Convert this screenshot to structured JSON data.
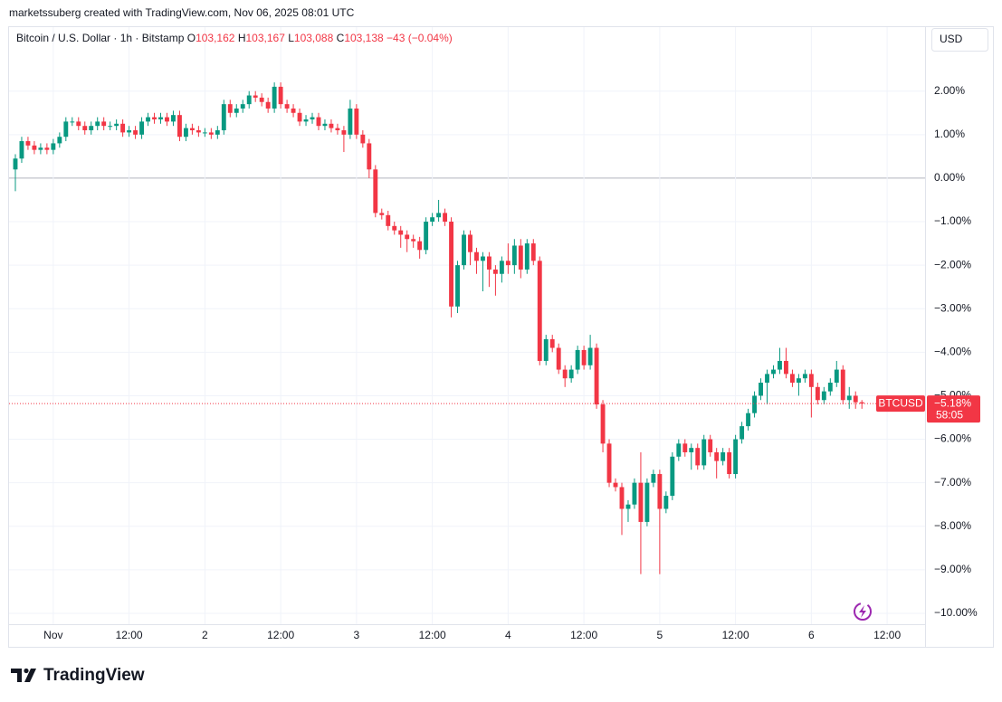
{
  "header": {
    "credit": "marketssuberg created with TradingView.com, Nov 06, 2025 08:01 UTC",
    "symbol": "Bitcoin / U.S. Dollar · 1h · Bitstamp",
    "ohlc": [
      {
        "key": "O",
        "value": "103,162"
      },
      {
        "key": "H",
        "value": "103,167"
      },
      {
        "key": "L",
        "value": "103,088"
      },
      {
        "key": "C",
        "value": "103,138"
      }
    ],
    "change": "−43 (−0.04%)",
    "currency": "USD"
  },
  "footer": {
    "brand": "TradingView"
  },
  "chart_data": {
    "type": "candlestick",
    "xlim": [
      -1,
      144
    ],
    "xticks": [
      {
        "value": 6,
        "label": "Nov"
      },
      {
        "value": 18,
        "label": "12:00"
      },
      {
        "value": 30,
        "label": "2"
      },
      {
        "value": 42,
        "label": "12:00"
      },
      {
        "value": 54,
        "label": "3"
      },
      {
        "value": 66,
        "label": "12:00"
      },
      {
        "value": 78,
        "label": "4"
      },
      {
        "value": 90,
        "label": "12:00"
      },
      {
        "value": 102,
        "label": "5"
      },
      {
        "value": 114,
        "label": "12:00"
      },
      {
        "value": 126,
        "label": "6"
      },
      {
        "value": 138,
        "label": "12:00"
      }
    ],
    "ylim": [
      -10.77,
      3.47
    ],
    "yticks": [
      {
        "value": 2,
        "label": "2.00%"
      },
      {
        "value": 1,
        "label": "1.00%"
      },
      {
        "value": 0,
        "label": "0.00%"
      },
      {
        "value": -1,
        "label": "−1.00%"
      },
      {
        "value": -2,
        "label": "−2.00%"
      },
      {
        "value": -3,
        "label": "−3.00%"
      },
      {
        "value": -4,
        "label": "−4.00%"
      },
      {
        "value": -5,
        "label": "−5.00%"
      },
      {
        "value": -6,
        "label": "−6.00%"
      },
      {
        "value": -7,
        "label": "−7.00%"
      },
      {
        "value": -8,
        "label": "−8.00%"
      },
      {
        "value": -9,
        "label": "−9.00%"
      },
      {
        "value": -10,
        "label": "−10.00%"
      }
    ],
    "grid": true,
    "series": [
      {
        "name": "BTCUSD",
        "up_color": "#089981",
        "down_color": "#f23645",
        "open": [
          0.2,
          0.45,
          0.85,
          0.75,
          0.65,
          0.7,
          0.65,
          0.8,
          0.95,
          1.3,
          1.3,
          1.2,
          1.1,
          1.2,
          1.3,
          1.2,
          1.2,
          1.25,
          1.05,
          1.1,
          1.0,
          1.3,
          1.4,
          1.35,
          1.4,
          1.3,
          1.45,
          0.95,
          1.15,
          1.1,
          1.05,
          1.05,
          1.0,
          1.1,
          1.7,
          1.5,
          1.6,
          1.7,
          1.9,
          1.85,
          1.75,
          1.6,
          2.1,
          1.7,
          1.6,
          1.5,
          1.3,
          1.35,
          1.4,
          1.2,
          1.25,
          1.15,
          1.1,
          1.0,
          1.6,
          1.0,
          0.8,
          0.2,
          -0.8,
          -0.85,
          -1.1,
          -1.2,
          -1.3,
          -1.4,
          -1.45,
          -1.65,
          -1.0,
          -0.9,
          -0.8,
          -1.0,
          -2.95,
          -2.0,
          -1.3,
          -1.7,
          -1.9,
          -1.8,
          -2.1,
          -2.2,
          -1.9,
          -2.0,
          -1.55,
          -2.1,
          -1.5,
          -1.9,
          -4.2,
          -3.7,
          -3.9,
          -4.4,
          -4.6,
          -4.4,
          -3.95,
          -4.3,
          -3.9,
          -5.2,
          -6.1,
          -7.0,
          -7.1,
          -7.6,
          -7.5,
          -7.0,
          -7.9,
          -7.0,
          -6.8,
          -7.6,
          -7.3,
          -6.4,
          -6.1,
          -6.3,
          -6.2,
          -6.6,
          -6.0,
          -6.3,
          -6.5,
          -6.3,
          -6.8,
          -6.0,
          -5.7,
          -5.4,
          -5.0,
          -4.7,
          -4.5,
          -4.4,
          -4.2,
          -4.5,
          -4.7,
          -4.6,
          -4.5,
          -4.8,
          -5.1,
          -4.9,
          -4.7,
          -4.4,
          -5.1,
          -5.0,
          -5.15
        ],
        "high": [
          0.55,
          0.95,
          0.95,
          0.85,
          0.8,
          0.8,
          0.9,
          1.05,
          1.4,
          1.4,
          1.4,
          1.3,
          1.3,
          1.4,
          1.4,
          1.3,
          1.35,
          1.35,
          1.2,
          1.2,
          1.4,
          1.5,
          1.5,
          1.5,
          1.5,
          1.55,
          1.55,
          1.25,
          1.25,
          1.2,
          1.15,
          1.15,
          1.2,
          1.8,
          1.8,
          1.7,
          1.8,
          2.0,
          2.0,
          1.95,
          1.85,
          2.2,
          2.2,
          1.8,
          1.7,
          1.6,
          1.45,
          1.5,
          1.5,
          1.35,
          1.35,
          1.25,
          1.2,
          1.8,
          1.7,
          1.1,
          0.9,
          0.3,
          -0.7,
          -0.75,
          -1.0,
          -1.1,
          -1.2,
          -1.3,
          -1.35,
          -0.9,
          -0.8,
          -0.5,
          -0.7,
          -0.9,
          -1.9,
          -1.2,
          -1.2,
          -1.6,
          -1.7,
          -1.7,
          -2.0,
          -1.8,
          -1.5,
          -1.4,
          -1.4,
          -1.4,
          -1.4,
          -1.8,
          -3.6,
          -3.6,
          -3.8,
          -4.3,
          -4.3,
          -3.85,
          -3.85,
          -3.6,
          -3.8,
          -5.1,
          -6.0,
          -6.9,
          -7.0,
          -7.4,
          -6.9,
          -6.3,
          -6.9,
          -6.7,
          -6.7,
          -7.2,
          -6.3,
          -6.0,
          -6.0,
          -6.1,
          -6.1,
          -5.9,
          -5.9,
          -6.2,
          -6.2,
          -6.2,
          -5.9,
          -5.6,
          -5.3,
          -4.9,
          -4.6,
          -4.4,
          -4.3,
          -3.9,
          -3.9,
          -4.4,
          -4.5,
          -4.4,
          -4.4,
          -4.7,
          -4.8,
          -4.6,
          -4.2,
          -4.3,
          -4.8,
          -4.9,
          -5.1
        ],
        "low": [
          -0.3,
          0.35,
          0.65,
          0.55,
          0.55,
          0.55,
          0.55,
          0.7,
          0.85,
          1.2,
          1.1,
          1.0,
          1.0,
          1.1,
          1.1,
          1.1,
          1.1,
          0.95,
          0.95,
          0.9,
          0.9,
          1.2,
          1.25,
          1.25,
          1.2,
          1.2,
          0.85,
          0.85,
          1.0,
          0.95,
          0.95,
          0.9,
          0.9,
          1.0,
          1.4,
          1.4,
          1.5,
          1.6,
          1.75,
          1.65,
          1.5,
          1.5,
          1.6,
          1.5,
          1.4,
          1.2,
          1.2,
          1.25,
          1.1,
          1.1,
          1.05,
          1.0,
          0.6,
          0.9,
          0.9,
          0.7,
          0.0,
          -0.9,
          -0.95,
          -1.2,
          -1.3,
          -1.6,
          -1.7,
          -1.6,
          -1.85,
          -1.75,
          -1.1,
          -1.0,
          -1.1,
          -3.2,
          -3.1,
          -2.1,
          -2.0,
          -2.2,
          -2.6,
          -2.5,
          -2.7,
          -2.4,
          -2.2,
          -2.2,
          -2.3,
          -2.2,
          -2.0,
          -4.3,
          -4.3,
          -4.0,
          -4.5,
          -4.8,
          -4.7,
          -4.5,
          -4.4,
          -4.4,
          -5.3,
          -6.3,
          -7.1,
          -7.2,
          -8.2,
          -7.9,
          -7.6,
          -9.1,
          -8.0,
          -7.1,
          -9.1,
          -7.7,
          -7.4,
          -6.5,
          -6.4,
          -6.7,
          -6.7,
          -6.7,
          -6.4,
          -6.9,
          -6.6,
          -6.9,
          -6.9,
          -6.1,
          -5.8,
          -5.5,
          -5.1,
          -5.2,
          -4.6,
          -4.5,
          -4.6,
          -4.8,
          -5.0,
          -4.7,
          -5.5,
          -5.2,
          -5.2,
          -5.0,
          -4.8,
          -5.2,
          -5.3,
          -5.3,
          -5.3
        ],
        "close": [
          0.45,
          0.85,
          0.75,
          0.65,
          0.7,
          0.65,
          0.8,
          0.95,
          1.3,
          1.3,
          1.2,
          1.1,
          1.2,
          1.3,
          1.2,
          1.2,
          1.25,
          1.05,
          1.1,
          1.0,
          1.3,
          1.4,
          1.35,
          1.4,
          1.3,
          1.45,
          0.95,
          1.15,
          1.1,
          1.05,
          1.05,
          1.0,
          1.1,
          1.7,
          1.5,
          1.6,
          1.7,
          1.9,
          1.85,
          1.75,
          1.6,
          2.1,
          1.7,
          1.6,
          1.5,
          1.3,
          1.35,
          1.4,
          1.2,
          1.25,
          1.15,
          1.1,
          1.0,
          1.6,
          1.0,
          0.8,
          0.2,
          -0.8,
          -0.85,
          -1.1,
          -1.2,
          -1.3,
          -1.4,
          -1.45,
          -1.65,
          -1.0,
          -0.9,
          -0.8,
          -1.0,
          -2.95,
          -2.0,
          -1.3,
          -1.7,
          -1.9,
          -1.8,
          -2.1,
          -2.2,
          -1.9,
          -2.0,
          -1.55,
          -2.1,
          -1.5,
          -1.9,
          -4.2,
          -3.7,
          -3.9,
          -4.4,
          -4.6,
          -4.4,
          -3.95,
          -4.3,
          -3.9,
          -5.2,
          -6.1,
          -7.0,
          -7.1,
          -7.6,
          -7.5,
          -7.0,
          -7.9,
          -7.0,
          -6.8,
          -7.6,
          -7.3,
          -6.4,
          -6.1,
          -6.3,
          -6.2,
          -6.6,
          -6.0,
          -6.3,
          -6.5,
          -6.3,
          -6.8,
          -6.0,
          -5.7,
          -5.4,
          -5.0,
          -4.7,
          -4.5,
          -4.4,
          -4.2,
          -4.5,
          -4.7,
          -4.6,
          -4.5,
          -4.8,
          -5.1,
          -4.9,
          -4.7,
          -4.4,
          -5.1,
          -5.0,
          -5.15,
          -5.18
        ],
        "last_label": "−5.18%",
        "countdown": "58:05"
      }
    ]
  }
}
